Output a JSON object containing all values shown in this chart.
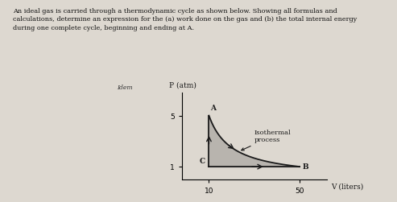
{
  "title_text": "An ideal gas is carried through a thermodynamic cycle as shown below. Showing all formulas and\ncalculations, determine an expression for the (a) work done on the gas and (b) the total internal energy\nduring one complete cycle, beginning and ending at A.",
  "ylabel": "P (atm)",
  "xlabel": "V (liters)",
  "point_A": [
    10,
    5
  ],
  "point_B": [
    50,
    1
  ],
  "point_C": [
    10,
    1
  ],
  "yticks": [
    1,
    5
  ],
  "xticks": [
    10,
    50
  ],
  "isothermal_label": "Isothermal\nprocess",
  "paper_color": "#ddd8d0",
  "fill_color": "#b8b4ae",
  "curve_color": "#1a1a1a",
  "arrow_color": "#1a1a1a",
  "label_color": "#1a1a1a",
  "side_label": "Idem"
}
